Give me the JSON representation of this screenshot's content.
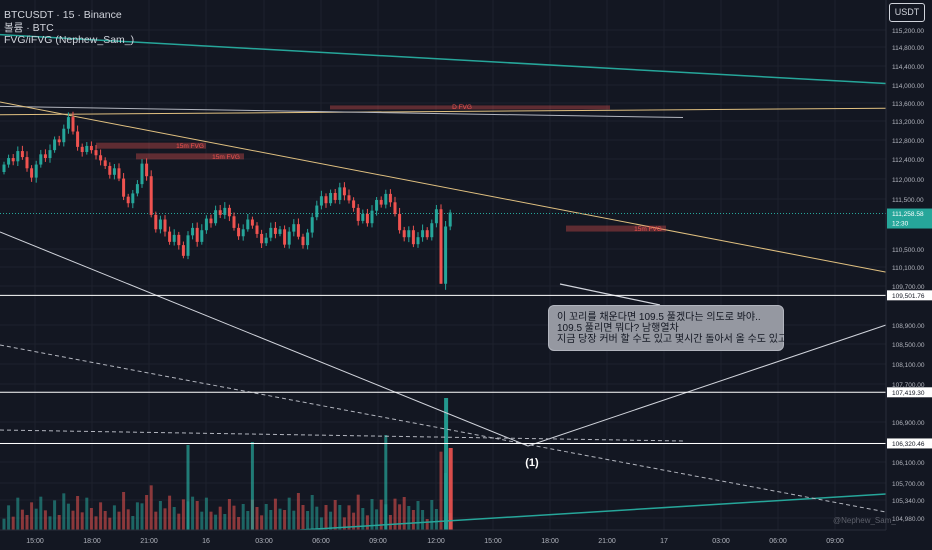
{
  "header": {
    "symbol_line": "BTCUSDT · 15 · Binance",
    "volume_line": "볼륨 · BTC",
    "indicator_line": "FVG/iFVG (Nephew_Sam_)"
  },
  "currency_button": "USDT",
  "note": {
    "lines": [
      "이 꼬리를 채운다면 109.5 풀겠다는 의도로 봐야..",
      "109.5  풀리면 뭐다? 남행열차",
      "지금 당장 커버 할 수도 있고 몇시간 돌아서 올 수도 있고.."
    ]
  },
  "watermark": "@Nephew_Sam_",
  "colors": {
    "up": "#26a69a",
    "down": "#ef5350",
    "trend": "#e0c080",
    "channel": "#26a69a",
    "fvg": "#ef5350"
  },
  "chart_data": {
    "type": "candlestick",
    "y_axis_labels": [
      "115,200.00",
      "114,800.00",
      "114,400.00",
      "114,000.00",
      "113,600.00",
      "113,200.00",
      "112,800.00",
      "112,400.00",
      "112,000.00",
      "111,500.00",
      "110,500.00",
      "110,100.00",
      "109,700.00",
      "108,900.00",
      "108,500.00",
      "108,100.00",
      "107,700.00",
      "106,900.00",
      "106,500.00",
      "106,100.00",
      "105,700.00",
      "105,340.00",
      "104,980.00"
    ],
    "y_axis_values": [
      115200,
      114800,
      114400,
      114000,
      113600,
      113200,
      112800,
      112400,
      112000,
      111500,
      110500,
      110100,
      109700,
      108900,
      108500,
      108100,
      107700,
      106900,
      106500,
      106100,
      105700,
      105340,
      104980
    ],
    "x_axis_labels": [
      "15:00",
      "18:00",
      "21:00",
      "16",
      "03:00",
      "06:00",
      "09:00",
      "12:00",
      "15:00",
      "18:00",
      "21:00",
      "17",
      "03:00",
      "06:00",
      "09:00"
    ],
    "price_badges": [
      {
        "text": "111,258.58",
        "sub": "12:30",
        "value": 111258.58,
        "color": "#26a69a"
      },
      {
        "text": "109,501.76",
        "value": 109501.76,
        "color": "#ffffff"
      },
      {
        "text": "107,419.30",
        "value": 107419.3,
        "color": "#ffffff"
      },
      {
        "text": "106,320.46",
        "value": 106320.46,
        "color": "#ffffff"
      }
    ],
    "horizontal_levels": [
      109501.76,
      107419.3,
      106320.46
    ],
    "fvg_labels": [
      "D FVG",
      "15m FVG",
      "15m FVG",
      "15m FVG"
    ],
    "annotation": "(1)",
    "candles": [
      {
        "o": 112150,
        "c": 112310
      },
      {
        "o": 112310,
        "c": 112450
      },
      {
        "o": 112450,
        "c": 112380
      },
      {
        "o": 112380,
        "c": 112600
      },
      {
        "o": 112600,
        "c": 112470
      },
      {
        "o": 112470,
        "c": 112230
      },
      {
        "o": 112230,
        "c": 112030
      },
      {
        "o": 112030,
        "c": 112310
      },
      {
        "o": 112310,
        "c": 112530
      },
      {
        "o": 112530,
        "c": 112450
      },
      {
        "o": 112450,
        "c": 112620
      },
      {
        "o": 112620,
        "c": 112850
      },
      {
        "o": 112850,
        "c": 112790
      },
      {
        "o": 112790,
        "c": 113080
      },
      {
        "o": 113080,
        "c": 113330
      },
      {
        "o": 113330,
        "c": 113020
      },
      {
        "o": 113020,
        "c": 112690
      },
      {
        "o": 112690,
        "c": 112580
      },
      {
        "o": 112580,
        "c": 112710
      },
      {
        "o": 112710,
        "c": 112620
      },
      {
        "o": 112620,
        "c": 112510
      },
      {
        "o": 112510,
        "c": 112400
      },
      {
        "o": 112400,
        "c": 112280
      },
      {
        "o": 112280,
        "c": 112090
      },
      {
        "o": 112090,
        "c": 112230
      },
      {
        "o": 112230,
        "c": 112010
      },
      {
        "o": 112010,
        "c": 111620
      },
      {
        "o": 111620,
        "c": 111480
      },
      {
        "o": 111480,
        "c": 111690
      },
      {
        "o": 111690,
        "c": 111890
      },
      {
        "o": 111890,
        "c": 112330
      },
      {
        "o": 112330,
        "c": 112060
      },
      {
        "o": 112060,
        "c": 111230
      },
      {
        "o": 111230,
        "c": 110920
      },
      {
        "o": 110920,
        "c": 111130
      },
      {
        "o": 111130,
        "c": 110870
      },
      {
        "o": 110870,
        "c": 110650
      },
      {
        "o": 110650,
        "c": 110800
      },
      {
        "o": 110800,
        "c": 110580
      },
      {
        "o": 110580,
        "c": 110350
      },
      {
        "o": 110350,
        "c": 110790
      },
      {
        "o": 110790,
        "c": 110950
      },
      {
        "o": 110950,
        "c": 110650
      },
      {
        "o": 110650,
        "c": 110900
      },
      {
        "o": 110900,
        "c": 111150
      },
      {
        "o": 111150,
        "c": 111050
      },
      {
        "o": 111050,
        "c": 111330
      },
      {
        "o": 111330,
        "c": 111230
      },
      {
        "o": 111230,
        "c": 111380
      },
      {
        "o": 111380,
        "c": 111200
      },
      {
        "o": 111200,
        "c": 110950
      },
      {
        "o": 110950,
        "c": 110770
      },
      {
        "o": 110770,
        "c": 110920
      },
      {
        "o": 110920,
        "c": 111130
      },
      {
        "o": 111130,
        "c": 111000
      },
      {
        "o": 111000,
        "c": 110820
      },
      {
        "o": 110820,
        "c": 110620
      },
      {
        "o": 110620,
        "c": 110740
      },
      {
        "o": 110740,
        "c": 110950
      },
      {
        "o": 110950,
        "c": 110820
      },
      {
        "o": 110820,
        "c": 110920
      },
      {
        "o": 110920,
        "c": 110590
      },
      {
        "o": 110590,
        "c": 110870
      },
      {
        "o": 110870,
        "c": 111030
      },
      {
        "o": 111030,
        "c": 110760
      },
      {
        "o": 110760,
        "c": 110580
      },
      {
        "o": 110580,
        "c": 110850
      },
      {
        "o": 110850,
        "c": 111180
      },
      {
        "o": 111180,
        "c": 111430
      },
      {
        "o": 111430,
        "c": 111630
      },
      {
        "o": 111630,
        "c": 111480
      },
      {
        "o": 111480,
        "c": 111700
      },
      {
        "o": 111700,
        "c": 111550
      },
      {
        "o": 111550,
        "c": 111820
      },
      {
        "o": 111820,
        "c": 111650
      },
      {
        "o": 111650,
        "c": 111540
      },
      {
        "o": 111540,
        "c": 111380
      },
      {
        "o": 111380,
        "c": 111100
      },
      {
        "o": 111100,
        "c": 111250
      },
      {
        "o": 111250,
        "c": 111050
      },
      {
        "o": 111050,
        "c": 111320
      },
      {
        "o": 111320,
        "c": 111550
      },
      {
        "o": 111550,
        "c": 111450
      },
      {
        "o": 111450,
        "c": 111680
      },
      {
        "o": 111680,
        "c": 111500
      },
      {
        "o": 111500,
        "c": 111250
      },
      {
        "o": 111250,
        "c": 110900
      },
      {
        "o": 110900,
        "c": 110750
      },
      {
        "o": 110750,
        "c": 110900
      },
      {
        "o": 110900,
        "c": 110600
      },
      {
        "o": 110600,
        "c": 110750
      },
      {
        "o": 110750,
        "c": 110900
      },
      {
        "o": 110900,
        "c": 110750
      },
      {
        "o": 110750,
        "c": 111050
      },
      {
        "o": 111050,
        "c": 111350
      },
      {
        "o": 111350,
        "c": 109750
      },
      {
        "o": 109750,
        "c": 110980
      },
      {
        "o": 110980,
        "c": 111280
      }
    ]
  }
}
